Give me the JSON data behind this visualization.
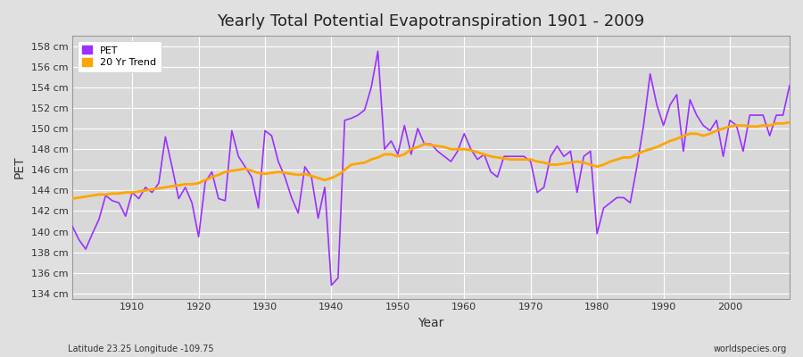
{
  "title": "Yearly Total Potential Evapotranspiration 1901 - 2009",
  "xlabel": "Year",
  "ylabel": "PET",
  "subtitle": "Latitude 23.25 Longitude -109.75",
  "watermark": "worldspecies.org",
  "pet_color": "#9B30FF",
  "trend_color": "#FFA500",
  "fig_bg_color": "#E0E0E0",
  "plot_bg_color": "#D8D8D8",
  "grid_color": "#FFFFFF",
  "ylim": [
    133.5,
    159.0
  ],
  "yticks": [
    134,
    136,
    138,
    140,
    142,
    144,
    146,
    148,
    150,
    152,
    154,
    156,
    158
  ],
  "xlim": [
    1901,
    2009
  ],
  "xticks": [
    1910,
    1920,
    1930,
    1940,
    1950,
    1960,
    1970,
    1980,
    1990,
    2000
  ],
  "years": [
    1901,
    1902,
    1903,
    1904,
    1905,
    1906,
    1907,
    1908,
    1909,
    1910,
    1911,
    1912,
    1913,
    1914,
    1915,
    1916,
    1917,
    1918,
    1919,
    1920,
    1921,
    1922,
    1923,
    1924,
    1925,
    1926,
    1927,
    1928,
    1929,
    1930,
    1931,
    1932,
    1933,
    1934,
    1935,
    1936,
    1937,
    1938,
    1939,
    1940,
    1941,
    1942,
    1943,
    1944,
    1945,
    1946,
    1947,
    1948,
    1949,
    1950,
    1951,
    1952,
    1953,
    1954,
    1955,
    1956,
    1957,
    1958,
    1959,
    1960,
    1961,
    1962,
    1963,
    1964,
    1965,
    1966,
    1967,
    1968,
    1969,
    1970,
    1971,
    1972,
    1973,
    1974,
    1975,
    1976,
    1977,
    1978,
    1979,
    1980,
    1981,
    1982,
    1983,
    1984,
    1985,
    1986,
    1987,
    1988,
    1989,
    1990,
    1991,
    1992,
    1993,
    1994,
    1995,
    1996,
    1997,
    1998,
    1999,
    2000,
    2001,
    2002,
    2003,
    2004,
    2005,
    2006,
    2007,
    2008,
    2009
  ],
  "pet_values": [
    140.5,
    139.2,
    138.3,
    139.8,
    141.2,
    143.5,
    143.0,
    142.8,
    141.5,
    143.8,
    143.2,
    144.3,
    143.8,
    144.7,
    149.2,
    146.3,
    143.2,
    144.3,
    142.8,
    139.5,
    144.8,
    145.8,
    143.2,
    143.0,
    149.8,
    147.3,
    146.3,
    145.3,
    142.3,
    149.8,
    149.3,
    146.8,
    145.3,
    143.3,
    141.8,
    146.3,
    145.3,
    141.3,
    144.3,
    134.8,
    135.5,
    150.8,
    151.0,
    151.3,
    151.8,
    154.0,
    157.5,
    148.0,
    148.8,
    147.5,
    150.3,
    147.5,
    150.0,
    148.5,
    148.5,
    147.8,
    147.3,
    146.8,
    147.8,
    149.5,
    148.0,
    147.0,
    147.5,
    145.8,
    145.3,
    147.3,
    147.3,
    147.3,
    147.3,
    146.8,
    143.8,
    144.3,
    147.3,
    148.3,
    147.3,
    147.8,
    143.8,
    147.3,
    147.8,
    139.8,
    142.3,
    142.8,
    143.3,
    143.3,
    142.8,
    146.3,
    150.3,
    155.3,
    152.3,
    150.3,
    152.3,
    153.3,
    147.8,
    152.8,
    151.3,
    150.3,
    149.8,
    150.8,
    147.3,
    150.8,
    150.3,
    147.8,
    151.3,
    151.3,
    151.3,
    149.3,
    151.3,
    151.3,
    154.2
  ],
  "trend_years": [
    1901,
    1902,
    1903,
    1904,
    1905,
    1906,
    1907,
    1908,
    1909,
    1910,
    1911,
    1912,
    1913,
    1914,
    1915,
    1916,
    1917,
    1918,
    1919,
    1920,
    1921,
    1922,
    1923,
    1924,
    1925,
    1926,
    1927,
    1928,
    1929,
    1930,
    1931,
    1932,
    1933,
    1934,
    1935,
    1936,
    1937,
    1938,
    1939,
    1940,
    1941,
    1942,
    1943,
    1944,
    1945,
    1946,
    1947,
    1948,
    1949,
    1950,
    1951,
    1952,
    1953,
    1954,
    1955,
    1956,
    1957,
    1958,
    1959,
    1960,
    1961,
    1962,
    1963,
    1964,
    1965,
    1966,
    1967,
    1968,
    1969,
    1970,
    1971,
    1972,
    1973,
    1974,
    1975,
    1976,
    1977,
    1978,
    1979,
    1980,
    1981,
    1982,
    1983,
    1984,
    1985,
    1986,
    1987,
    1988,
    1989,
    1990,
    1991,
    1992,
    1993,
    1994,
    1995,
    1996,
    1997,
    1998,
    1999,
    2000,
    2001,
    2002,
    2003,
    2004,
    2005,
    2006,
    2007,
    2008,
    2009
  ],
  "trend_values": [
    143.2,
    143.3,
    143.4,
    143.5,
    143.6,
    143.6,
    143.7,
    143.7,
    143.8,
    143.8,
    143.9,
    144.0,
    144.1,
    144.2,
    144.3,
    144.4,
    144.5,
    144.6,
    144.6,
    144.7,
    145.0,
    145.3,
    145.5,
    145.8,
    145.9,
    146.0,
    146.1,
    145.9,
    145.7,
    145.6,
    145.7,
    145.8,
    145.7,
    145.6,
    145.5,
    145.6,
    145.4,
    145.2,
    145.0,
    145.2,
    145.5,
    146.0,
    146.5,
    146.6,
    146.7,
    147.0,
    147.2,
    147.5,
    147.5,
    147.3,
    147.5,
    148.0,
    148.2,
    148.5,
    148.4,
    148.3,
    148.2,
    148.0,
    148.0,
    148.0,
    147.9,
    147.7,
    147.5,
    147.3,
    147.2,
    147.1,
    147.0,
    147.0,
    147.0,
    147.0,
    146.8,
    146.7,
    146.5,
    146.5,
    146.6,
    146.7,
    146.8,
    146.7,
    146.5,
    146.3,
    146.5,
    146.8,
    147.0,
    147.2,
    147.2,
    147.5,
    147.8,
    148.0,
    148.2,
    148.5,
    148.8,
    149.0,
    149.3,
    149.5,
    149.5,
    149.3,
    149.5,
    149.8,
    150.0,
    150.2,
    150.3,
    150.3,
    150.2,
    150.2,
    150.3,
    150.3,
    150.5,
    150.5,
    150.6
  ]
}
